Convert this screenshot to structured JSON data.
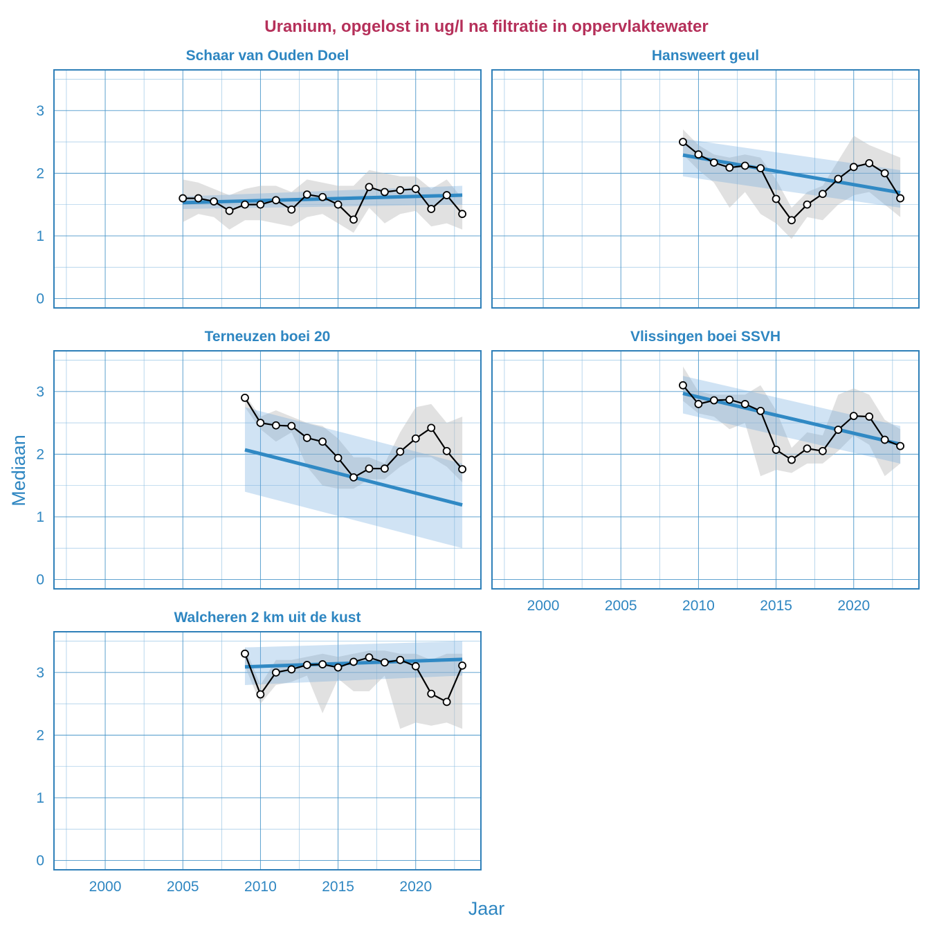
{
  "chart_data": {
    "type": "line",
    "title": "Uranium, opgelost in ug/l na filtratie in oppervlaktewater",
    "xlabel": "Jaar",
    "ylabel": "Mediaan",
    "xlim": [
      1996.7,
      2024.2
    ],
    "ylim": [
      -0.15,
      3.65
    ],
    "x_ticks": [
      2000,
      2005,
      2010,
      2015,
      2020
    ],
    "y_ticks": [
      0,
      1,
      2,
      3
    ],
    "colors": {
      "title": "#b5305a",
      "accent": "#2e86c1",
      "trend": "#3089c4",
      "series": "#000000"
    },
    "panels": [
      {
        "title": "Schaar van Ouden Doel",
        "x": [
          2005,
          2006,
          2007,
          2008,
          2009,
          2010,
          2011,
          2012,
          2013,
          2014,
          2015,
          2016,
          2017,
          2018,
          2019,
          2020,
          2021,
          2022,
          2023
        ],
        "y": [
          1.6,
          1.6,
          1.55,
          1.4,
          1.5,
          1.5,
          1.57,
          1.42,
          1.66,
          1.62,
          1.5,
          1.26,
          1.78,
          1.7,
          1.73,
          1.75,
          1.43,
          1.65,
          1.35
        ],
        "band_low": [
          1.22,
          1.35,
          1.3,
          1.1,
          1.25,
          1.25,
          1.2,
          1.15,
          1.3,
          1.35,
          1.2,
          1.05,
          1.45,
          1.2,
          1.35,
          1.4,
          1.15,
          1.2,
          1.1
        ],
        "band_high": [
          1.9,
          1.85,
          1.75,
          1.65,
          1.75,
          1.8,
          1.8,
          1.7,
          1.9,
          1.85,
          1.8,
          1.8,
          2.05,
          2.0,
          1.95,
          1.95,
          1.75,
          1.9,
          1.6
        ],
        "trend": {
          "x": [
            2005,
            2023
          ],
          "y": [
            1.53,
            1.65
          ]
        },
        "trend_band": {
          "low": [
            1.43,
            1.5
          ],
          "high": [
            1.63,
            1.8
          ]
        }
      },
      {
        "title": "Hansweert geul",
        "x": [
          2009,
          2010,
          2011,
          2012,
          2013,
          2014,
          2015,
          2016,
          2017,
          2018,
          2019,
          2020,
          2021,
          2022,
          2023
        ],
        "y": [
          2.5,
          2.3,
          2.17,
          2.09,
          2.12,
          2.08,
          1.59,
          1.25,
          1.5,
          1.67,
          1.91,
          2.1,
          2.16,
          2.0,
          1.6
        ],
        "band_low": [
          2.3,
          2.05,
          1.85,
          1.45,
          1.7,
          1.35,
          1.2,
          0.95,
          1.3,
          1.25,
          1.5,
          1.65,
          1.7,
          1.5,
          1.3
        ],
        "band_high": [
          2.7,
          2.45,
          2.3,
          2.25,
          2.3,
          2.25,
          1.9,
          1.45,
          1.7,
          1.8,
          2.2,
          2.6,
          2.45,
          2.35,
          2.25
        ],
        "trend": {
          "x": [
            2009,
            2023
          ],
          "y": [
            2.29,
            1.69
          ]
        },
        "trend_band": {
          "low": [
            1.95,
            1.45
          ],
          "high": [
            2.55,
            2.05
          ]
        }
      },
      {
        "title": "Terneuzen boei 20",
        "x": [
          2009,
          2010,
          2011,
          2012,
          2013,
          2014,
          2015,
          2016,
          2017,
          2018,
          2019,
          2020,
          2021,
          2022,
          2023
        ],
        "y": [
          2.9,
          2.5,
          2.46,
          2.45,
          2.26,
          2.2,
          1.94,
          1.63,
          1.77,
          1.77,
          2.04,
          2.25,
          2.42,
          2.05,
          1.76
        ],
        "band_low": [
          2.75,
          2.4,
          2.2,
          2.35,
          1.8,
          1.5,
          1.45,
          1.45,
          1.6,
          1.6,
          1.8,
          1.95,
          1.95,
          1.8,
          1.55
        ],
        "band_high": [
          2.95,
          2.6,
          2.7,
          2.6,
          2.5,
          2.45,
          2.25,
          1.95,
          1.95,
          1.85,
          2.35,
          2.75,
          2.8,
          2.5,
          2.6
        ],
        "trend": {
          "x": [
            2009,
            2023
          ],
          "y": [
            2.07,
            1.19
          ]
        },
        "trend_band": {
          "low": [
            1.4,
            0.5
          ],
          "high": [
            2.75,
            1.85
          ]
        }
      },
      {
        "title": "Vlissingen boei SSVH",
        "x": [
          2009,
          2010,
          2011,
          2012,
          2013,
          2014,
          2015,
          2016,
          2017,
          2018,
          2019,
          2020,
          2021,
          2022,
          2023
        ],
        "y": [
          3.1,
          2.8,
          2.86,
          2.87,
          2.8,
          2.69,
          2.07,
          1.91,
          2.09,
          2.05,
          2.39,
          2.61,
          2.6,
          2.23,
          2.13
        ],
        "band_low": [
          2.85,
          2.65,
          2.6,
          2.4,
          2.5,
          1.65,
          1.75,
          1.7,
          1.85,
          1.85,
          2.05,
          2.3,
          2.15,
          1.65,
          1.85
        ],
        "band_high": [
          3.4,
          3.0,
          2.95,
          2.95,
          2.95,
          3.1,
          2.7,
          2.1,
          2.35,
          2.3,
          2.95,
          3.05,
          2.95,
          2.55,
          2.4
        ],
        "trend": {
          "x": [
            2009,
            2023
          ],
          "y": [
            2.97,
            2.16
          ]
        },
        "trend_band": {
          "low": [
            2.65,
            1.85
          ],
          "high": [
            3.25,
            2.45
          ]
        }
      },
      {
        "title": "Walcheren 2 km uit de kust",
        "x": [
          2009,
          2010,
          2011,
          2012,
          2013,
          2014,
          2015,
          2016,
          2017,
          2018,
          2019,
          2020,
          2021,
          2022,
          2023
        ],
        "y": [
          3.3,
          2.65,
          3.0,
          3.05,
          3.12,
          3.13,
          3.08,
          3.17,
          3.24,
          3.16,
          3.2,
          3.1,
          2.66,
          2.53,
          3.11
        ],
        "band_low": [
          3.1,
          2.5,
          2.8,
          2.85,
          2.95,
          2.35,
          2.9,
          2.7,
          2.7,
          2.95,
          2.1,
          2.2,
          2.15,
          2.2,
          2.1
        ],
        "band_high": [
          3.4,
          2.8,
          3.2,
          3.2,
          3.25,
          3.3,
          3.25,
          3.3,
          3.35,
          3.35,
          3.3,
          3.3,
          3.2,
          3.3,
          3.3
        ],
        "trend": {
          "x": [
            2009,
            2023
          ],
          "y": [
            3.09,
            3.21
          ]
        },
        "trend_band": {
          "low": [
            2.8,
            2.95
          ],
          "high": [
            3.4,
            3.5
          ]
        }
      }
    ]
  }
}
